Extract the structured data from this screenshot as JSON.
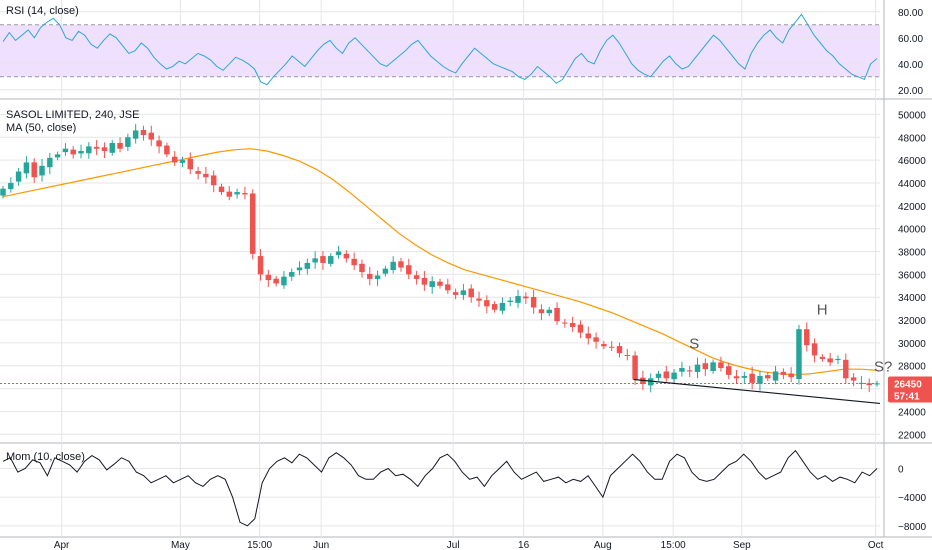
{
  "colors": {
    "up": "#26a69a",
    "down": "#ef5350",
    "ma": "#ff9800",
    "rsi": "#2aa8d6",
    "rsi_band": "#f0e0ff",
    "momentum": "#131722",
    "price_line": "#ef5350",
    "trendline": "#131722",
    "grid": "#e6e6e6"
  },
  "chart_data": [
    {
      "type": "line",
      "title": "RSI (14, close)",
      "series": [
        {
          "name": "RSI",
          "values": [
            57,
            64,
            58,
            62,
            66,
            60,
            68,
            72,
            75,
            70,
            60,
            58,
            65,
            62,
            55,
            52,
            58,
            63,
            60,
            54,
            48,
            50,
            56,
            52,
            45,
            40,
            36,
            38,
            42,
            40,
            44,
            48,
            46,
            43,
            38,
            35,
            40,
            45,
            43,
            40,
            36,
            26,
            24,
            30,
            35,
            40,
            46,
            42,
            38,
            44,
            50,
            55,
            58,
            52,
            48,
            56,
            60,
            55,
            50,
            45,
            40,
            38,
            42,
            46,
            50,
            55,
            58,
            52,
            46,
            42,
            38,
            35,
            33,
            40,
            46,
            52,
            48,
            44,
            40,
            38,
            36,
            34,
            30,
            28,
            32,
            38,
            34,
            30,
            25,
            28,
            36,
            44,
            48,
            42,
            40,
            50,
            58,
            62,
            56,
            48,
            40,
            35,
            32,
            30,
            36,
            42,
            46,
            40,
            36,
            38,
            44,
            50,
            56,
            62,
            58,
            52,
            46,
            40,
            36,
            48,
            56,
            62,
            66,
            60,
            56,
            66,
            72,
            78,
            70,
            62,
            56,
            50,
            46,
            40,
            36,
            32,
            30,
            28,
            40,
            44
          ]
        }
      ],
      "hlines": [
        80,
        60,
        40,
        20
      ],
      "band": [
        30,
        70
      ],
      "ylim": [
        16,
        86
      ],
      "ticks": [
        "80.00",
        "60.00",
        "40.00",
        "20.00"
      ]
    },
    {
      "type": "candlestick",
      "title": "SASOL LIMITED, 240, JSE",
      "indicator": "MA (50, close)",
      "ylim": [
        21500,
        51000
      ],
      "ticks": [
        "50000",
        "48000",
        "46000",
        "44000",
        "42000",
        "40000",
        "38000",
        "36000",
        "34000",
        "32000",
        "30000",
        "28000",
        "26000",
        "24000",
        "22000"
      ],
      "close": [
        43500,
        44000,
        45000,
        45800,
        44500,
        45500,
        46200,
        46500,
        47000,
        46500,
        46800,
        47200,
        47000,
        46800,
        47500,
        47000,
        48000,
        48600,
        48200,
        47800,
        47200,
        46500,
        45800,
        46000,
        45200,
        44800,
        44500,
        43800,
        43200,
        42800,
        43200,
        43000,
        37800,
        36000,
        35500,
        35200,
        35800,
        36200,
        36600,
        37000,
        37400,
        37000,
        37600,
        38000,
        37400,
        36800,
        36200,
        35600,
        35900,
        36500,
        37100,
        36600,
        36000,
        35600,
        35100,
        35400,
        35000,
        34600,
        34200,
        34600,
        34000,
        33700,
        33200,
        32900,
        33500,
        33700,
        34100,
        33900,
        33100,
        32600,
        32900,
        31900,
        31700,
        31400,
        30900,
        30400,
        30100,
        29700,
        29600,
        29100,
        28900,
        26800,
        26400,
        26900,
        27300,
        26900,
        27400,
        27800,
        27500,
        28100,
        27700,
        28300,
        27800,
        27200,
        26900,
        27100,
        26500,
        27100,
        26900,
        27500,
        27200,
        27000,
        31200,
        29800,
        28900,
        28600,
        28300,
        28600,
        26900,
        26700,
        26500,
        26300,
        26450
      ],
      "ma": [
        42800,
        43100,
        43400,
        43700,
        44000,
        44300,
        44600,
        44900,
        45200,
        45500,
        45800,
        46100,
        46400,
        46700,
        46900,
        47000,
        46800,
        46400,
        45900,
        45200,
        44300,
        43200,
        42000,
        40800,
        39600,
        38600,
        37700,
        37000,
        36400,
        36000,
        35600,
        35200,
        34800,
        34400,
        34000,
        33600,
        33100,
        32600,
        32000,
        31400,
        30800,
        30100,
        29400,
        28700,
        28200,
        27800,
        27500,
        27300,
        27200,
        27300,
        27500,
        27700,
        27700,
        27600
      ],
      "price_label": "26450",
      "countdown": "57:41",
      "trendline": [
        [
          0.72,
          26800
        ],
        [
          1.0,
          24700
        ]
      ],
      "annotations": [
        {
          "text": "S",
          "x": 0.79,
          "y": 29500
        },
        {
          "text": "H",
          "x": 0.935,
          "y": 32500
        },
        {
          "text": "S?",
          "x": 1.0,
          "y": 27500
        }
      ]
    },
    {
      "type": "line",
      "title": "Mom (10, close)",
      "series": [
        {
          "name": "Mom",
          "values": [
            1000,
            1500,
            -500,
            0,
            1200,
            800,
            -1000,
            1500,
            1000,
            500,
            -500,
            1000,
            1800,
            1200,
            -200,
            600,
            1500,
            1000,
            -500,
            -1000,
            -2000,
            -1500,
            -1000,
            -2000,
            -1500,
            -1000,
            -2000,
            -2500,
            -1500,
            -1000,
            -1500,
            -4000,
            -7500,
            -8000,
            -7000,
            -2000,
            0,
            1000,
            1500,
            800,
            2000,
            1500,
            500,
            -500,
            1500,
            2200,
            1500,
            500,
            -1000,
            -1500,
            -1500,
            -500,
            0,
            -1000,
            -800,
            -1500,
            -2500,
            -1000,
            0,
            1500,
            2000,
            1000,
            -500,
            -1500,
            -1200,
            -2500,
            -1000,
            0,
            1000,
            -500,
            -1500,
            -1000,
            -500,
            -1800,
            -1500,
            -1200,
            -2000,
            -1500,
            -1800,
            -1000,
            -2500,
            -4000,
            -1000,
            0,
            1000,
            2000,
            1000,
            -500,
            -1500,
            -1500,
            1000,
            2000,
            1500,
            -500,
            -1500,
            -1800,
            -1500,
            -500,
            500,
            1000,
            2000,
            1000,
            -500,
            -1500,
            -1000,
            -500,
            1500,
            2500,
            1000,
            -500,
            -1500,
            -1000,
            -1800,
            -1200,
            -1500,
            -2000,
            -500,
            -1000,
            0
          ]
        }
      ],
      "ylim": [
        -9000,
        3000
      ],
      "ticks": [
        "0",
        "−4000",
        "−8000"
      ]
    }
  ],
  "x_axis": {
    "labels": [
      {
        "text": "Apr",
        "f": 0.07
      },
      {
        "text": "May",
        "f": 0.205
      },
      {
        "text": "15:00",
        "f": 0.295
      },
      {
        "text": "Jun",
        "f": 0.365
      },
      {
        "text": "Jul",
        "f": 0.515
      },
      {
        "text": "16",
        "f": 0.595
      },
      {
        "text": "Aug",
        "f": 0.685
      },
      {
        "text": "15:00",
        "f": 0.765
      },
      {
        "text": "Sep",
        "f": 0.843
      },
      {
        "text": "Oct",
        "f": 0.995
      }
    ]
  }
}
